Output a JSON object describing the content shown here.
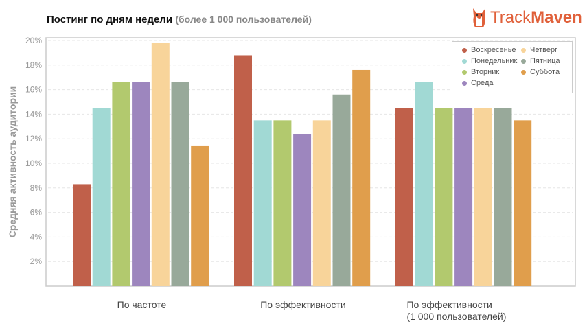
{
  "header": {
    "title": "Постинг по дням недели",
    "subtitle": "(более 1 000 пользователей)",
    "logo_text_light": "Track",
    "logo_text_bold": "Maven"
  },
  "chart_data": {
    "type": "bar",
    "title": "Постинг по дням недели (более 1 000 пользователей)",
    "ylabel": "Средняя активность аудитории",
    "xlabel": "",
    "ylim": [
      0,
      20
    ],
    "yticks": [
      "2%",
      "4%",
      "6%",
      "8%",
      "10%",
      "12%",
      "14%",
      "16%",
      "18%",
      "20%"
    ],
    "ytick_values": [
      2,
      4,
      6,
      8,
      10,
      12,
      14,
      16,
      18,
      20
    ],
    "grid": true,
    "legend_position": "top-right",
    "categories": [
      "По частоте",
      "По эффективности",
      "По эффективности\n(1 000 пользователей)"
    ],
    "series": [
      {
        "name": "Воскресенье",
        "color": "#c0604a",
        "values": [
          8.3,
          18.8,
          14.5
        ]
      },
      {
        "name": "Понедельник",
        "color": "#a1d9d4",
        "values": [
          14.5,
          13.5,
          16.6
        ]
      },
      {
        "name": "Вторник",
        "color": "#b2c96e",
        "values": [
          16.6,
          13.5,
          14.5
        ]
      },
      {
        "name": "Среда",
        "color": "#9d86be",
        "values": [
          16.6,
          12.4,
          14.5
        ]
      },
      {
        "name": "Четверг",
        "color": "#f8d49a",
        "values": [
          19.8,
          13.5,
          14.5
        ]
      },
      {
        "name": "Пятница",
        "color": "#98a99a",
        "values": [
          16.6,
          15.6,
          14.5
        ]
      },
      {
        "name": "Суббота",
        "color": "#e09e4c",
        "values": [
          11.4,
          17.6,
          13.5
        ]
      }
    ]
  }
}
